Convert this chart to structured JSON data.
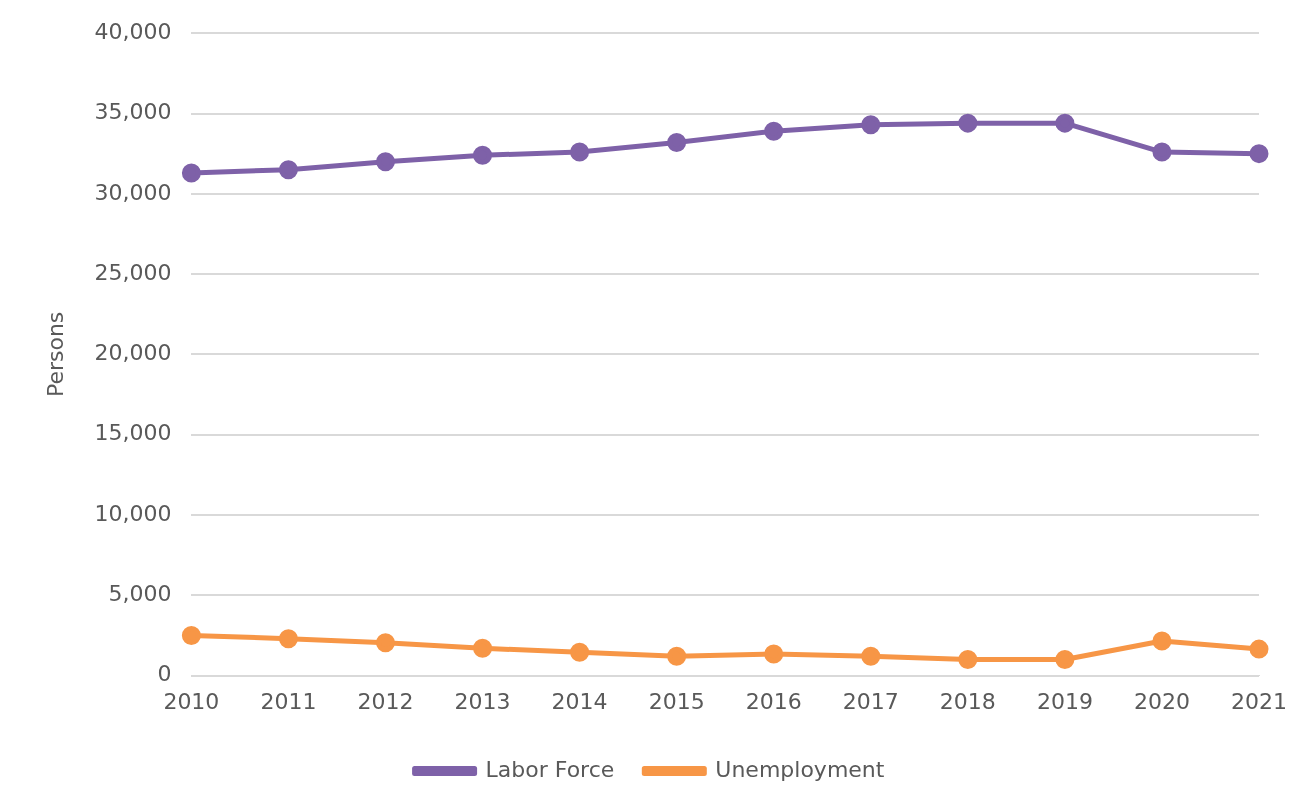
{
  "chart_data": {
    "type": "line",
    "ylabel": "Persons",
    "categories": [
      "2010",
      "2011",
      "2012",
      "2013",
      "2014",
      "2015",
      "2016",
      "2017",
      "2018",
      "2019",
      "2020",
      "2021"
    ],
    "series": [
      {
        "name": "Labor Force",
        "color": "#7e61a8",
        "values": [
          31300,
          31500,
          32000,
          32400,
          32600,
          33200,
          33900,
          34300,
          34400,
          34400,
          32600,
          32500
        ]
      },
      {
        "name": "Unemployment",
        "color": "#f79646",
        "values": [
          2500,
          2300,
          2050,
          1700,
          1450,
          1200,
          1350,
          1200,
          1000,
          1000,
          2150,
          1650
        ]
      }
    ],
    "ylim": [
      0,
      40000
    ],
    "yticks": [
      0,
      {
        "value": 5000,
        "label": "5,000"
      },
      {
        "value": 10000,
        "label": "10,000"
      },
      {
        "value": 15000,
        "label": "15,000"
      },
      {
        "value": 20000,
        "label": "20,000"
      },
      {
        "value": 25000,
        "label": "25,000"
      },
      {
        "value": 30000,
        "label": "30,000"
      },
      {
        "value": 35000,
        "label": "35,000"
      },
      {
        "value": 40000,
        "label": "40,000"
      }
    ],
    "grid": "y",
    "legend": "bottom",
    "marker": "circle",
    "line_style": "solid"
  }
}
